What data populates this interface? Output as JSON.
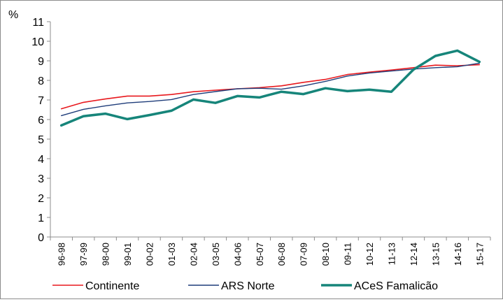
{
  "chart_data": {
    "type": "line",
    "ylabel": "%",
    "ylim": [
      0,
      11
    ],
    "yticks": [
      0,
      1,
      2,
      3,
      4,
      5,
      6,
      7,
      8,
      9,
      10,
      11
    ],
    "grid": false,
    "legend_position": "bottom",
    "categories": [
      "96-98",
      "97-99",
      "98-00",
      "99-01",
      "00-02",
      "01-03",
      "02-04",
      "03-05",
      "04-06",
      "05-07",
      "06-08",
      "07-09",
      "08-10",
      "09-11",
      "10-12",
      "11-13",
      "12-14",
      "13-15",
      "14-16",
      "15-17"
    ],
    "series": [
      {
        "name": "Continente",
        "color": "#e8191e",
        "values": [
          6.55,
          6.88,
          7.05,
          7.2,
          7.2,
          7.28,
          7.42,
          7.5,
          7.57,
          7.63,
          7.72,
          7.9,
          8.05,
          8.3,
          8.42,
          8.53,
          8.65,
          8.78,
          8.75,
          8.8
        ]
      },
      {
        "name": "ARS Norte",
        "color": "#1f3d7a",
        "values": [
          6.2,
          6.52,
          6.7,
          6.85,
          6.92,
          7.02,
          7.28,
          7.43,
          7.57,
          7.6,
          7.55,
          7.72,
          7.95,
          8.22,
          8.38,
          8.48,
          8.58,
          8.65,
          8.7,
          8.88
        ]
      },
      {
        "name": "ACeS Famalicão",
        "color": "#16857a",
        "values": [
          5.7,
          6.17,
          6.3,
          6.02,
          6.23,
          6.45,
          7.02,
          6.85,
          7.2,
          7.13,
          7.42,
          7.3,
          7.6,
          7.45,
          7.53,
          7.42,
          8.55,
          9.25,
          9.52,
          8.95
        ]
      }
    ]
  }
}
